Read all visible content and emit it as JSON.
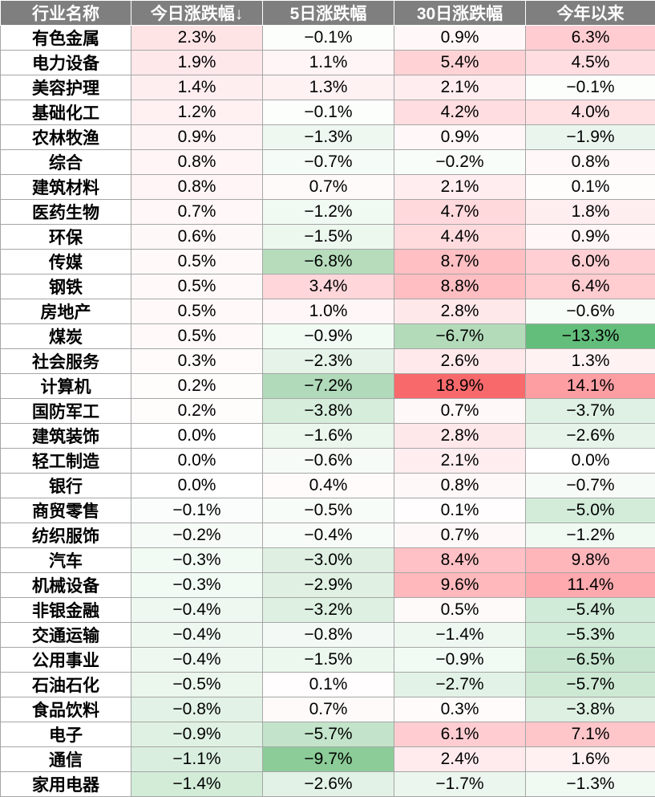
{
  "chart_data": {
    "type": "table",
    "headers": [
      "行业名称",
      "今日涨跌幅↓",
      "5日涨跌幅",
      "30日涨跌幅",
      "今年以来"
    ],
    "rows": [
      {
        "name": "有色金属",
        "cells": [
          {
            "text": "2.3%",
            "bg": "#ffe4e6"
          },
          {
            "text": "−0.1%",
            "bg": "#fbfefb"
          },
          {
            "text": "0.9%",
            "bg": "#fff7f8"
          },
          {
            "text": "6.3%",
            "bg": "#ffcdd1"
          }
        ]
      },
      {
        "name": "电力设备",
        "cells": [
          {
            "text": "1.9%",
            "bg": "#ffe8ea"
          },
          {
            "text": "1.1%",
            "bg": "#fff5f6"
          },
          {
            "text": "5.4%",
            "bg": "#ffd3d6"
          },
          {
            "text": "4.5%",
            "bg": "#ffdde0"
          }
        ]
      },
      {
        "name": "美容护理",
        "cells": [
          {
            "text": "1.4%",
            "bg": "#ffeef0"
          },
          {
            "text": "1.3%",
            "bg": "#fff2f3"
          },
          {
            "text": "2.1%",
            "bg": "#ffedef"
          },
          {
            "text": "−0.1%",
            "bg": "#fbfefb"
          }
        ]
      },
      {
        "name": "基础化工",
        "cells": [
          {
            "text": "1.2%",
            "bg": "#fff1f2"
          },
          {
            "text": "−0.1%",
            "bg": "#fbfefb"
          },
          {
            "text": "4.2%",
            "bg": "#ffdde0"
          },
          {
            "text": "4.0%",
            "bg": "#ffe1e4"
          }
        ]
      },
      {
        "name": "农林牧渔",
        "cells": [
          {
            "text": "0.9%",
            "bg": "#fff4f5"
          },
          {
            "text": "−1.3%",
            "bg": "#eef8f0"
          },
          {
            "text": "0.9%",
            "bg": "#fff7f8"
          },
          {
            "text": "−1.9%",
            "bg": "#eaf6ed"
          }
        ]
      },
      {
        "name": "综合",
        "cells": [
          {
            "text": "0.8%",
            "bg": "#fff5f6"
          },
          {
            "text": "−0.7%",
            "bg": "#f5fbf6"
          },
          {
            "text": "−0.2%",
            "bg": "#f9fdfa"
          },
          {
            "text": "0.8%",
            "bg": "#fff7f8"
          }
        ]
      },
      {
        "name": "建筑材料",
        "cells": [
          {
            "text": "0.8%",
            "bg": "#fff5f6"
          },
          {
            "text": "0.7%",
            "bg": "#fffafa"
          },
          {
            "text": "2.1%",
            "bg": "#ffedef"
          },
          {
            "text": "0.1%",
            "bg": "#fffcfc"
          }
        ]
      },
      {
        "name": "医药生物",
        "cells": [
          {
            "text": "0.7%",
            "bg": "#fff7f8"
          },
          {
            "text": "−1.2%",
            "bg": "#f0f9f2"
          },
          {
            "text": "4.7%",
            "bg": "#ffd9dc"
          },
          {
            "text": "1.8%",
            "bg": "#ffeef0"
          }
        ]
      },
      {
        "name": "环保",
        "cells": [
          {
            "text": "0.6%",
            "bg": "#fff8f8"
          },
          {
            "text": "−1.5%",
            "bg": "#ecf7ee"
          },
          {
            "text": "4.4%",
            "bg": "#ffdbde"
          },
          {
            "text": "0.9%",
            "bg": "#fff6f7"
          }
        ]
      },
      {
        "name": "传媒",
        "cells": [
          {
            "text": "0.5%",
            "bg": "#fff9f9"
          },
          {
            "text": "−6.8%",
            "bg": "#b6dcbc"
          },
          {
            "text": "8.7%",
            "bg": "#ffbfc3"
          },
          {
            "text": "6.0%",
            "bg": "#ffcfd3"
          }
        ]
      },
      {
        "name": "钢铁",
        "cells": [
          {
            "text": "0.5%",
            "bg": "#fff9f9"
          },
          {
            "text": "3.4%",
            "bg": "#ffd6d9"
          },
          {
            "text": "8.8%",
            "bg": "#ffbec2"
          },
          {
            "text": "6.4%",
            "bg": "#ffccd0"
          }
        ]
      },
      {
        "name": "房地产",
        "cells": [
          {
            "text": "0.5%",
            "bg": "#fff9f9"
          },
          {
            "text": "1.0%",
            "bg": "#fff6f7"
          },
          {
            "text": "2.8%",
            "bg": "#ffe8ea"
          },
          {
            "text": "−0.6%",
            "bg": "#f7fcf8"
          }
        ]
      },
      {
        "name": "煤炭",
        "cells": [
          {
            "text": "0.5%",
            "bg": "#fff9f9"
          },
          {
            "text": "−0.9%",
            "bg": "#f2faf4"
          },
          {
            "text": "−6.7%",
            "bg": "#b3dbba"
          },
          {
            "text": "−13.3%",
            "bg": "#63be7b"
          }
        ]
      },
      {
        "name": "社会服务",
        "cells": [
          {
            "text": "0.3%",
            "bg": "#fffbfb"
          },
          {
            "text": "−2.3%",
            "bg": "#e5f3e8"
          },
          {
            "text": "2.6%",
            "bg": "#ffe9eb"
          },
          {
            "text": "1.3%",
            "bg": "#fff2f3"
          }
        ]
      },
      {
        "name": "计算机",
        "cells": [
          {
            "text": "0.2%",
            "bg": "#fffcfc"
          },
          {
            "text": "−7.2%",
            "bg": "#b1daba"
          },
          {
            "text": "18.9%",
            "bg": "#f8696b"
          },
          {
            "text": "14.1%",
            "bg": "#fd9ea3"
          }
        ]
      },
      {
        "name": "国防军工",
        "cells": [
          {
            "text": "0.2%",
            "bg": "#fffcfc"
          },
          {
            "text": "−3.8%",
            "bg": "#d6eddb"
          },
          {
            "text": "0.7%",
            "bg": "#fff8f9"
          },
          {
            "text": "−3.7%",
            "bg": "#dff1e4"
          }
        ]
      },
      {
        "name": "建筑装饰",
        "cells": [
          {
            "text": "0.0%",
            "bg": "#ffffff"
          },
          {
            "text": "−1.6%",
            "bg": "#ebf6ed"
          },
          {
            "text": "2.8%",
            "bg": "#ffe8ea"
          },
          {
            "text": "−2.6%",
            "bg": "#e6f4e9"
          }
        ]
      },
      {
        "name": "轻工制造",
        "cells": [
          {
            "text": "0.0%",
            "bg": "#ffffff"
          },
          {
            "text": "−0.6%",
            "bg": "#f6fbf7"
          },
          {
            "text": "2.1%",
            "bg": "#ffedef"
          },
          {
            "text": "0.0%",
            "bg": "#ffffff"
          }
        ]
      },
      {
        "name": "银行",
        "cells": [
          {
            "text": "0.0%",
            "bg": "#ffffff"
          },
          {
            "text": "0.4%",
            "bg": "#fffbfb"
          },
          {
            "text": "0.8%",
            "bg": "#fff8f8"
          },
          {
            "text": "−0.7%",
            "bg": "#f6fbf7"
          }
        ]
      },
      {
        "name": "商贸零售",
        "cells": [
          {
            "text": "−0.1%",
            "bg": "#fafdfb"
          },
          {
            "text": "−0.5%",
            "bg": "#f7fcf8"
          },
          {
            "text": "0.1%",
            "bg": "#fffdfd"
          },
          {
            "text": "−5.0%",
            "bg": "#d3ecda"
          }
        ]
      },
      {
        "name": "纺织服饰",
        "cells": [
          {
            "text": "−0.2%",
            "bg": "#f6fbf7"
          },
          {
            "text": "−0.4%",
            "bg": "#f8fcf9"
          },
          {
            "text": "0.7%",
            "bg": "#fff8f9"
          },
          {
            "text": "−1.2%",
            "bg": "#f1f9f3"
          }
        ]
      },
      {
        "name": "汽车",
        "cells": [
          {
            "text": "−0.3%",
            "bg": "#f2faf4"
          },
          {
            "text": "−3.0%",
            "bg": "#dff0e3"
          },
          {
            "text": "8.4%",
            "bg": "#ffc1c5"
          },
          {
            "text": "9.8%",
            "bg": "#ffb6bb"
          }
        ]
      },
      {
        "name": "机械设备",
        "cells": [
          {
            "text": "−0.3%",
            "bg": "#f2faf4"
          },
          {
            "text": "−2.9%",
            "bg": "#e0f1e4"
          },
          {
            "text": "9.6%",
            "bg": "#ffb8bc"
          },
          {
            "text": "11.4%",
            "bg": "#fea9ae"
          }
        ]
      },
      {
        "name": "非银金融",
        "cells": [
          {
            "text": "−0.4%",
            "bg": "#eef8f0"
          },
          {
            "text": "−3.2%",
            "bg": "#ddf0e1"
          },
          {
            "text": "0.5%",
            "bg": "#fffafa"
          },
          {
            "text": "−5.4%",
            "bg": "#d0ebd7"
          }
        ]
      },
      {
        "name": "交通运输",
        "cells": [
          {
            "text": "−0.4%",
            "bg": "#eef8f0"
          },
          {
            "text": "−0.8%",
            "bg": "#f3faf5"
          },
          {
            "text": "−1.4%",
            "bg": "#eef8f0"
          },
          {
            "text": "−5.3%",
            "bg": "#d1ecd8"
          }
        ]
      },
      {
        "name": "公用事业",
        "cells": [
          {
            "text": "−0.4%",
            "bg": "#eef8f0"
          },
          {
            "text": "−1.5%",
            "bg": "#ecf7ee"
          },
          {
            "text": "−0.9%",
            "bg": "#f2faf4"
          },
          {
            "text": "−6.5%",
            "bg": "#c6e6cf"
          }
        ]
      },
      {
        "name": "石油石化",
        "cells": [
          {
            "text": "−0.5%",
            "bg": "#ebf6ed"
          },
          {
            "text": "0.1%",
            "bg": "#fffdfd"
          },
          {
            "text": "−2.7%",
            "bg": "#e2f2e6"
          },
          {
            "text": "−5.7%",
            "bg": "#cde9d4"
          }
        ]
      },
      {
        "name": "食品饮料",
        "cells": [
          {
            "text": "−0.8%",
            "bg": "#e2f2e6"
          },
          {
            "text": "0.7%",
            "bg": "#fffafa"
          },
          {
            "text": "0.3%",
            "bg": "#fffbfb"
          },
          {
            "text": "−3.8%",
            "bg": "#ddf0e2"
          }
        ]
      },
      {
        "name": "电子",
        "cells": [
          {
            "text": "−0.9%",
            "bg": "#dff1e3"
          },
          {
            "text": "−5.7%",
            "bg": "#c3e4ca"
          },
          {
            "text": "6.1%",
            "bg": "#ffcdd1"
          },
          {
            "text": "7.1%",
            "bg": "#ffc6ca"
          }
        ]
      },
      {
        "name": "通信",
        "cells": [
          {
            "text": "−1.1%",
            "bg": "#d9eedf"
          },
          {
            "text": "−9.7%",
            "bg": "#8ccc98"
          },
          {
            "text": "2.4%",
            "bg": "#ffebed"
          },
          {
            "text": "1.6%",
            "bg": "#fff0f1"
          }
        ]
      },
      {
        "name": "家用电器",
        "cells": [
          {
            "text": "−1.4%",
            "bg": "#d2ecd8"
          },
          {
            "text": "−2.6%",
            "bg": "#e2f2e6"
          },
          {
            "text": "−1.7%",
            "bg": "#ebf6ee"
          },
          {
            "text": "−1.3%",
            "bg": "#f0f9f2"
          }
        ]
      }
    ]
  },
  "colors": {
    "header_bg": "#7f7f7f",
    "header_text": "#ffffff",
    "positive_max": "#f8696b",
    "negative_max": "#63be7b",
    "grid": "#a6a6a6"
  }
}
